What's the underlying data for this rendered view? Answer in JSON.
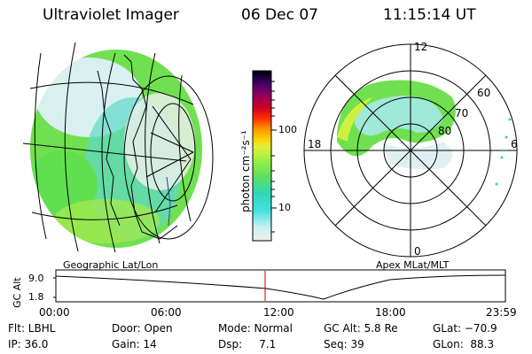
{
  "header": {
    "instrument": "Ultraviolet Imager",
    "date": "06 Dec 07",
    "time": "11:15:14 UT"
  },
  "left_panel": {
    "caption": "Geographic Lat/Lon"
  },
  "colorbar": {
    "label": "photon cm⁻²s⁻¹",
    "ticks": [
      "100",
      "10"
    ],
    "scale": "log",
    "colors": [
      "#f0f0f0",
      "#c8f0f0",
      "#40e0e0",
      "#30d8b8",
      "#60e060",
      "#a0f040",
      "#e0f040",
      "#ffd000",
      "#ff9000",
      "#ff3000",
      "#d00020",
      "#a00050",
      "#600070",
      "#200040",
      "#000000"
    ]
  },
  "right_panel": {
    "caption": "Apex MLat/MLT",
    "mlt_labels": [
      "12",
      "18",
      "6",
      "0"
    ],
    "mlat_labels": [
      "60",
      "70",
      "80"
    ]
  },
  "gc_alt_plot": {
    "ylabel": "GC Alt",
    "yticks": [
      "9.0",
      "1.8"
    ],
    "xticks": [
      "00:00",
      "06:00",
      "12:00",
      "18:00",
      "23:59"
    ],
    "current_time_marker_color": "#c00000"
  },
  "footer": {
    "col1": [
      "Flt: LBHL",
      "IP: 36.0"
    ],
    "col2": [
      "Door: Open",
      "Gain: 14"
    ],
    "col3": [
      "Mode: Normal",
      "Dsp:     7.1"
    ],
    "col4": [
      "GC Alt: 5.8 Re",
      "Seq: 39"
    ],
    "col5": [
      "GLat: −70.9",
      "GLon:  88.3"
    ]
  }
}
